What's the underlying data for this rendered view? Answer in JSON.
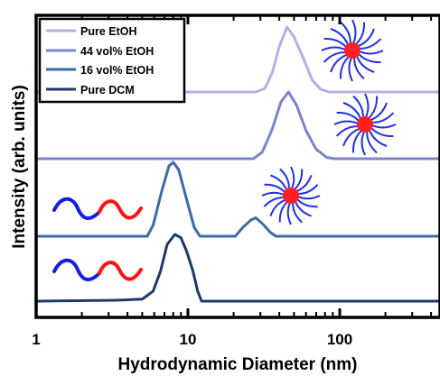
{
  "chart_data": {
    "type": "line",
    "xscale": "log",
    "xlim": [
      1,
      500
    ],
    "xlabel": "Hydrodynamic Diameter (nm)",
    "ylabel": "Intensity (arb. units)",
    "xticks": [
      1,
      10,
      100
    ],
    "xtick_labels": [
      "1",
      "10",
      "100"
    ],
    "grid": false,
    "legend_position": "top-left",
    "series": [
      {
        "name": "Pure EtOH",
        "color": "#b3b0e6",
        "points": [
          [
            1,
            0
          ],
          [
            28,
            0
          ],
          [
            32,
            0.05
          ],
          [
            36,
            0.3
          ],
          [
            40,
            0.7
          ],
          [
            45,
            1.0
          ],
          [
            50,
            0.85
          ],
          [
            58,
            0.5
          ],
          [
            66,
            0.18
          ],
          [
            75,
            0.04
          ],
          [
            85,
            0
          ],
          [
            500,
            0
          ]
        ],
        "inset": "micelle"
      },
      {
        "name": "44 vol% EtOH",
        "color": "#7b83cc",
        "points": [
          [
            1,
            0
          ],
          [
            27,
            0
          ],
          [
            31,
            0.1
          ],
          [
            36,
            0.45
          ],
          [
            41,
            0.85
          ],
          [
            46,
            1.0
          ],
          [
            52,
            0.8
          ],
          [
            60,
            0.42
          ],
          [
            70,
            0.14
          ],
          [
            82,
            0.02
          ],
          [
            92,
            0
          ],
          [
            500,
            0
          ]
        ],
        "inset": "micelle"
      },
      {
        "name": "16 vol% EtOH",
        "color": "#3e6ba8",
        "points": [
          [
            1,
            0
          ],
          [
            5.4,
            0
          ],
          [
            5.9,
            0.15
          ],
          [
            6.7,
            0.6
          ],
          [
            7.5,
            0.95
          ],
          [
            8.0,
            1.0
          ],
          [
            8.7,
            0.9
          ],
          [
            9.8,
            0.5
          ],
          [
            11,
            0.12
          ],
          [
            12,
            0
          ],
          [
            20.5,
            0
          ],
          [
            23,
            0.12
          ],
          [
            26,
            0.22
          ],
          [
            28,
            0.25
          ],
          [
            31,
            0.17
          ],
          [
            35,
            0.05
          ],
          [
            38,
            0
          ],
          [
            500,
            0
          ]
        ],
        "inset": "chain+micelle"
      },
      {
        "name": "Pure DCM",
        "color": "#1e3a68",
        "points": [
          [
            1,
            0
          ],
          [
            3.5,
            0.015
          ],
          [
            5,
            0.03
          ],
          [
            5.9,
            0.15
          ],
          [
            6.6,
            0.45
          ],
          [
            7.3,
            0.85
          ],
          [
            8.2,
            1.0
          ],
          [
            9.0,
            0.95
          ],
          [
            9.8,
            0.75
          ],
          [
            10.8,
            0.45
          ],
          [
            11.6,
            0.15
          ],
          [
            12.3,
            0
          ],
          [
            500,
            0
          ]
        ],
        "inset": "chain"
      }
    ],
    "insets": {
      "micelle_core": "#ff2020",
      "micelle_arms": "#2030e0",
      "chain_colors": [
        "#1020e0",
        "#ff1010"
      ]
    }
  }
}
